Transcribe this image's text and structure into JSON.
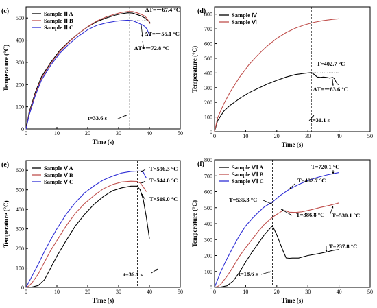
{
  "colors": {
    "black": "#000000",
    "red": "#c0504d",
    "blue": "#2f2fd6"
  },
  "chart_data": [
    {
      "id": "c",
      "panel_label": "(c)",
      "type": "line",
      "xlabel": "Time (s)",
      "ylabel": "Temperature (°C)",
      "xlim": [
        0,
        50
      ],
      "ylim": [
        0,
        550
      ],
      "xticks": [
        0,
        10,
        20,
        30,
        40,
        50
      ],
      "yticks": [
        0,
        100,
        200,
        300,
        400,
        500
      ],
      "legend_position": "top-left",
      "series": [
        {
          "name": "Sample Ⅲ A",
          "color": "black",
          "x": [
            0,
            1,
            3,
            5,
            8,
            11,
            14,
            17,
            20,
            23,
            26,
            29,
            31,
            33,
            34.5,
            36,
            37.5,
            38.5,
            39.2,
            39.8,
            40.2
          ],
          "y": [
            0,
            75,
            165,
            235,
            300,
            355,
            395,
            430,
            460,
            484,
            500,
            513,
            519,
            523,
            522,
            515,
            508,
            500,
            492,
            485,
            479
          ]
        },
        {
          "name": "Sample Ⅲ B",
          "color": "red",
          "x": [
            0,
            1,
            3,
            5,
            8,
            11,
            14,
            17,
            20,
            23,
            26,
            29,
            31,
            33,
            34.5,
            36,
            37.5,
            38.5,
            39.2,
            39.8,
            40.2
          ],
          "y": [
            0,
            68,
            158,
            228,
            295,
            350,
            393,
            430,
            461,
            487,
            505,
            518,
            525,
            529,
            529,
            523,
            515,
            508,
            498,
            484,
            474
          ]
        },
        {
          "name": "Sample Ⅲ C",
          "color": "blue",
          "x": [
            0,
            1,
            3,
            5,
            8,
            11,
            14,
            17,
            20,
            23,
            26,
            29,
            31,
            33,
            34.5,
            36,
            37.5,
            38.5,
            39.2,
            39.8,
            40.2
          ],
          "y": [
            0,
            62,
            150,
            220,
            287,
            342,
            383,
            418,
            447,
            467,
            478,
            485,
            488,
            490,
            488,
            480,
            470,
            462,
            450,
            430,
            418
          ]
        }
      ],
      "vline_x": 33.6,
      "annotations": [
        {
          "text": "ΔT=－67.4 °C",
          "x": 40.5,
          "y": 500
        },
        {
          "text": "ΔT=－55.1 °C",
          "x": 40.5,
          "y": 455
        },
        {
          "text": "ΔT=－72.8 °C",
          "x": 36.5,
          "y": 365
        },
        {
          "text": "t=33.6 s",
          "x": 26.5,
          "y": 42
        }
      ]
    },
    {
      "id": "d",
      "panel_label": "(d)",
      "type": "line",
      "xlabel": "Time (s)",
      "ylabel": "Temperature (°C)",
      "xlim": [
        0,
        50
      ],
      "ylim": [
        0,
        850
      ],
      "xticks": [
        0,
        10,
        20,
        30,
        40,
        50
      ],
      "yticks": [
        0,
        100,
        200,
        300,
        400,
        500,
        600,
        700,
        800
      ],
      "legend_position": "top-left",
      "series": [
        {
          "name": "Sample Ⅳ",
          "color": "black",
          "x": [
            0,
            1,
            3,
            5,
            8,
            11,
            14,
            17,
            20,
            23,
            26,
            29,
            31.1,
            32,
            33,
            34,
            35,
            36,
            37,
            38,
            38.5,
            39,
            39.5,
            40
          ],
          "y": [
            0,
            75,
            140,
            180,
            225,
            265,
            295,
            325,
            350,
            372,
            389,
            398,
            402.7,
            390,
            372,
            370,
            372,
            370,
            365,
            370,
            362,
            340,
            325,
            319
          ]
        },
        {
          "name": "Sample Ⅵ",
          "color": "red",
          "x": [
            0,
            1,
            3,
            5,
            8,
            11,
            14,
            17,
            20,
            23,
            26,
            29,
            32,
            35,
            38,
            40
          ],
          "y": [
            0,
            95,
            190,
            270,
            370,
            455,
            525,
            585,
            635,
            675,
            705,
            728,
            745,
            757,
            765,
            769
          ]
        }
      ],
      "vline_x": 31.1,
      "annotations": [
        {
          "text": "T=402.7 °C",
          "x": 31,
          "y": 425
        },
        {
          "text": "ΔT=－83.6 °C",
          "x": 39.5,
          "y": 270
        },
        {
          "text": "t=31.1 s",
          "x": 33,
          "y": 75
        }
      ]
    },
    {
      "id": "e",
      "panel_label": "(e)",
      "type": "line",
      "xlabel": "Time (s)",
      "ylabel": "Temperature (°C)",
      "xlim": [
        0,
        50
      ],
      "ylim": [
        0,
        650
      ],
      "xticks": [
        0,
        10,
        20,
        30,
        40,
        50
      ],
      "yticks": [
        0,
        100,
        200,
        300,
        400,
        500,
        600
      ],
      "legend_position": "top-left",
      "series": [
        {
          "name": "Sample Ⅴ A",
          "color": "black",
          "x": [
            0,
            2,
            4,
            6,
            8,
            10,
            13,
            16,
            19,
            22,
            25,
            28,
            31,
            34,
            36,
            37,
            38,
            39,
            40
          ],
          "y": [
            0,
            2,
            10,
            40,
            100,
            160,
            240,
            315,
            375,
            425,
            465,
            495,
            510,
            519,
            519,
            500,
            450,
            360,
            250
          ]
        },
        {
          "name": "Sample Ⅴ B",
          "color": "red",
          "x": [
            0,
            1,
            2,
            4,
            6,
            8,
            10,
            13,
            16,
            19,
            22,
            25,
            28,
            31,
            34,
            36,
            37,
            38,
            39
          ],
          "y": [
            0,
            8,
            25,
            70,
            130,
            190,
            240,
            315,
            380,
            430,
            470,
            505,
            527,
            540,
            544,
            543,
            535,
            515,
            490
          ]
        },
        {
          "name": "Sample Ⅴ C",
          "color": "blue",
          "x": [
            0,
            1,
            2,
            4,
            6,
            8,
            10,
            13,
            16,
            19,
            22,
            25,
            28,
            31,
            34,
            36,
            37,
            38,
            39
          ],
          "y": [
            0,
            30,
            60,
            120,
            185,
            245,
            300,
            375,
            435,
            485,
            520,
            550,
            570,
            586,
            594,
            596,
            596,
            590,
            560
          ]
        }
      ],
      "vline_x": 36.1,
      "annotations": [
        {
          "text": "T=596.3 °C",
          "x": 40,
          "y": 610
        },
        {
          "text": "T=544.0 °C",
          "x": 40,
          "y": 560
        },
        {
          "text": "T=519.0 °C",
          "x": 40,
          "y": 505
        },
        {
          "text": "t=36.1 s",
          "x": 29,
          "y": 52
        }
      ]
    },
    {
      "id": "f",
      "panel_label": "(f)",
      "type": "line",
      "xlabel": "Time (s)",
      "ylabel": "Temperature (°C)",
      "xlim": [
        0,
        50
      ],
      "ylim": [
        0,
        800
      ],
      "xticks": [
        0,
        10,
        20,
        30,
        40,
        50
      ],
      "yticks": [
        0,
        100,
        200,
        300,
        400,
        500,
        600,
        700,
        800
      ],
      "legend_position": "top-left",
      "series": [
        {
          "name": "Sample Ⅶ A",
          "color": "black",
          "x": [
            0,
            2,
            4,
            6,
            8,
            10,
            12,
            14,
            16,
            18.6,
            20,
            21,
            22,
            23,
            24,
            25,
            27,
            30,
            33,
            36,
            38,
            40
          ],
          "y": [
            0,
            2,
            10,
            40,
            95,
            160,
            220,
            275,
            330,
            386.8,
            330,
            280,
            230,
            185,
            183,
            184,
            184,
            200,
            210,
            222,
            232,
            237.8
          ]
        },
        {
          "name": "Sample Ⅶ B",
          "color": "red",
          "x": [
            0,
            1,
            2,
            4,
            6,
            8,
            10,
            12,
            14,
            16,
            18,
            19,
            20,
            21,
            22,
            23,
            24,
            26,
            28,
            31,
            34,
            37,
            40
          ],
          "y": [
            0,
            5,
            20,
            70,
            130,
            195,
            250,
            300,
            350,
            395,
            430,
            445,
            458,
            470,
            482.7,
            480,
            472,
            470,
            474,
            487,
            502,
            515,
            530.1
          ]
        },
        {
          "name": "Sample Ⅶ C",
          "color": "blue",
          "x": [
            0,
            1,
            2,
            4,
            6,
            8,
            10,
            12,
            14,
            16,
            18.6,
            21,
            24,
            27,
            30,
            33,
            36,
            38,
            40
          ],
          "y": [
            0,
            50,
            100,
            180,
            255,
            325,
            385,
            430,
            470,
            505,
            535.3,
            575,
            615,
            645,
            670,
            690,
            705,
            713,
            720.1
          ]
        }
      ],
      "vline_x": 18.6,
      "annotations": [
        {
          "text": "T=720.1 °C",
          "x": 30,
          "y": 770
        },
        {
          "text": "T=535.3 °C",
          "x": 2,
          "y": 570
        },
        {
          "text": "T=482.7 °C",
          "x": 24,
          "y": 520
        },
        {
          "text": "T=386.8 °C",
          "x": 21,
          "y": 395
        },
        {
          "text": "T=530.1 °C",
          "x": 43,
          "y": 440
        },
        {
          "text": "T=237.8 °C",
          "x": 35,
          "y": 135
        },
        {
          "text": "t=18.6 s",
          "x": 7,
          "y": 50
        }
      ]
    }
  ]
}
